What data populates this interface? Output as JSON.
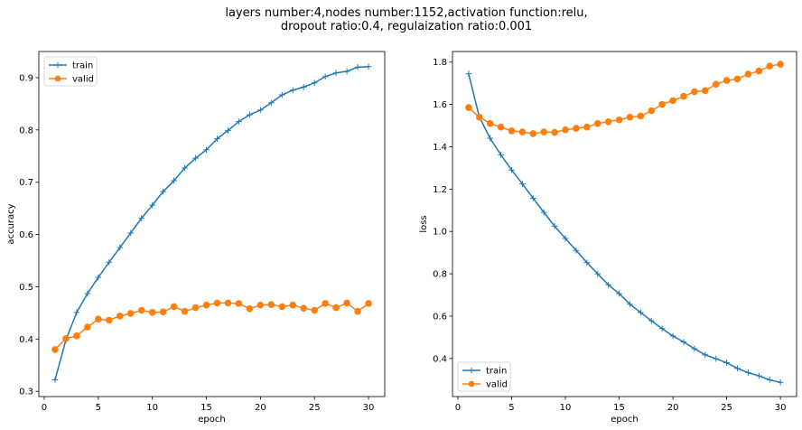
{
  "figure": {
    "suptitle_line1": "layers number:4,nodes number:1152,activation function:relu,",
    "suptitle_line2": "dropout ratio:0.4, regulaization ratio:0.001"
  },
  "chart_data": [
    {
      "type": "line",
      "xlabel": "epoch",
      "ylabel": "accuracy",
      "xlim": [
        -0.5,
        31.5
      ],
      "ylim": [
        0.29,
        0.95
      ],
      "xticks": [
        0,
        5,
        10,
        15,
        20,
        25,
        30
      ],
      "yticks": [
        0.3,
        0.4,
        0.5,
        0.6,
        0.7,
        0.8,
        0.9
      ],
      "ytick_labels": [
        "0.3",
        "0.4",
        "0.5",
        "0.6",
        "0.7",
        "0.8",
        "0.9"
      ],
      "legend_placement": "upper-left",
      "x": [
        1,
        2,
        3,
        4,
        5,
        6,
        7,
        8,
        9,
        10,
        11,
        12,
        13,
        14,
        15,
        16,
        17,
        18,
        19,
        20,
        21,
        22,
        23,
        24,
        25,
        26,
        27,
        28,
        29,
        30
      ],
      "series": [
        {
          "name": "train",
          "color": "#1f77b4",
          "marker": "plus",
          "values": [
            0.322,
            0.398,
            0.451,
            0.487,
            0.518,
            0.547,
            0.575,
            0.603,
            0.631,
            0.656,
            0.682,
            0.703,
            0.727,
            0.746,
            0.762,
            0.783,
            0.799,
            0.816,
            0.829,
            0.838,
            0.852,
            0.867,
            0.876,
            0.882,
            0.89,
            0.902,
            0.909,
            0.912,
            0.92,
            0.921
          ]
        },
        {
          "name": "valid",
          "color": "#ff7f0e",
          "marker": "circle",
          "values": [
            0.38,
            0.401,
            0.406,
            0.423,
            0.438,
            0.436,
            0.444,
            0.449,
            0.455,
            0.451,
            0.452,
            0.462,
            0.453,
            0.46,
            0.465,
            0.469,
            0.469,
            0.468,
            0.458,
            0.465,
            0.466,
            0.462,
            0.465,
            0.459,
            0.455,
            0.468,
            0.46,
            0.469,
            0.453,
            0.468
          ]
        }
      ]
    },
    {
      "type": "line",
      "xlabel": "epoch",
      "ylabel": "loss",
      "xlim": [
        -0.5,
        31.5
      ],
      "ylim": [
        0.22,
        1.85
      ],
      "xticks": [
        0,
        5,
        10,
        15,
        20,
        25,
        30
      ],
      "yticks": [
        0.4,
        0.6,
        0.8,
        1.0,
        1.2,
        1.4,
        1.6,
        1.8
      ],
      "ytick_labels": [
        "0.4",
        "0.6",
        "0.8",
        "1.0",
        "1.2",
        "1.4",
        "1.6",
        "1.8"
      ],
      "legend_placement": "lower-left",
      "x": [
        1,
        2,
        3,
        4,
        5,
        6,
        7,
        8,
        9,
        10,
        11,
        12,
        13,
        14,
        15,
        16,
        17,
        18,
        19,
        20,
        21,
        22,
        23,
        24,
        25,
        26,
        27,
        28,
        29,
        30
      ],
      "series": [
        {
          "name": "train",
          "color": "#1f77b4",
          "marker": "plus",
          "values": [
            1.745,
            1.54,
            1.44,
            1.362,
            1.29,
            1.225,
            1.157,
            1.09,
            1.025,
            0.967,
            0.91,
            0.853,
            0.8,
            0.748,
            0.706,
            0.656,
            0.617,
            0.578,
            0.541,
            0.506,
            0.478,
            0.446,
            0.417,
            0.399,
            0.38,
            0.353,
            0.333,
            0.318,
            0.299,
            0.287
          ]
        },
        {
          "name": "valid",
          "color": "#ff7f0e",
          "marker": "circle",
          "values": [
            1.585,
            1.54,
            1.51,
            1.493,
            1.475,
            1.47,
            1.462,
            1.47,
            1.468,
            1.48,
            1.487,
            1.493,
            1.51,
            1.518,
            1.527,
            1.54,
            1.545,
            1.57,
            1.6,
            1.618,
            1.638,
            1.66,
            1.665,
            1.695,
            1.713,
            1.72,
            1.743,
            1.758,
            1.781,
            1.79
          ]
        }
      ]
    }
  ]
}
